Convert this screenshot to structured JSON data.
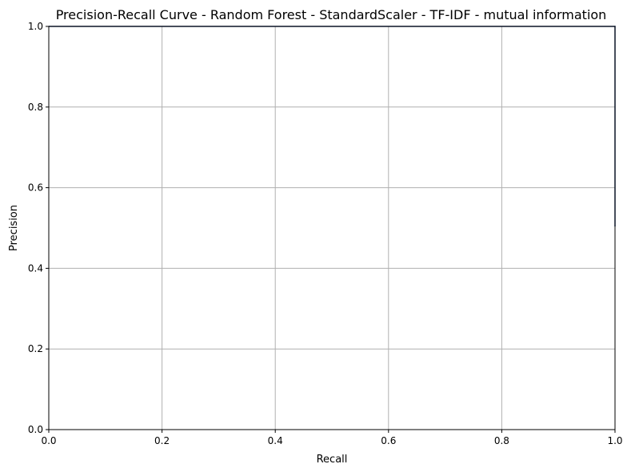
{
  "chart_data": {
    "type": "line",
    "title": "Precision-Recall Curve - Random Forest - StandardScaler - TF-IDF - mutual information",
    "xlabel": "Recall",
    "ylabel": "Precision",
    "xlim": [
      0.0,
      1.0
    ],
    "ylim": [
      0.0,
      1.0
    ],
    "grid": true,
    "x_ticks": [
      "0.0",
      "0.2",
      "0.4",
      "0.6",
      "0.8",
      "1.0"
    ],
    "y_ticks": [
      "0.0",
      "0.2",
      "0.4",
      "0.6",
      "0.8",
      "1.0"
    ],
    "series": [
      {
        "color": "#1f3a6e",
        "points": [
          {
            "x": 0.0,
            "y": 1.0
          },
          {
            "x": 1.0,
            "y": 1.0
          },
          {
            "x": 1.0,
            "y": 0.505
          }
        ]
      }
    ]
  }
}
